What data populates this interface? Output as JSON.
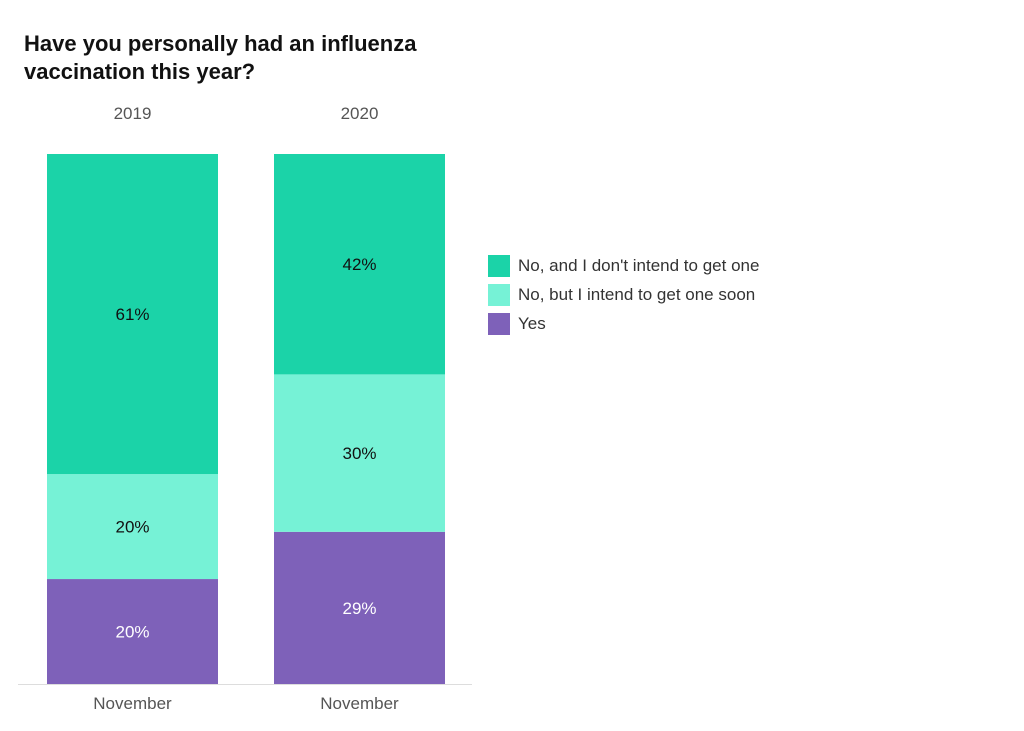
{
  "chart_data": {
    "type": "bar",
    "stacked": true,
    "normalized": true,
    "title": "Have you personally had an influenza vaccination this year?",
    "groups": [
      "2019",
      "2020"
    ],
    "categories": [
      "November",
      "November"
    ],
    "series": [
      {
        "name": "Yes",
        "color": "#7e61b9",
        "values": [
          20,
          29
        ],
        "labels": [
          "20%",
          "29%"
        ]
      },
      {
        "name": "No, but I intend to get one soon",
        "color": "#76f2d6",
        "values": [
          20,
          30
        ],
        "labels": [
          "20%",
          "30%"
        ]
      },
      {
        "name": "No, and I don't intend to get one",
        "color": "#1bd3a8",
        "values": [
          61,
          42
        ],
        "labels": [
          "61%",
          "42%"
        ]
      }
    ],
    "legend_order": [
      "No, and I don't intend to get one",
      "No, but I intend to get one soon",
      "Yes"
    ],
    "legend_position": "right"
  }
}
